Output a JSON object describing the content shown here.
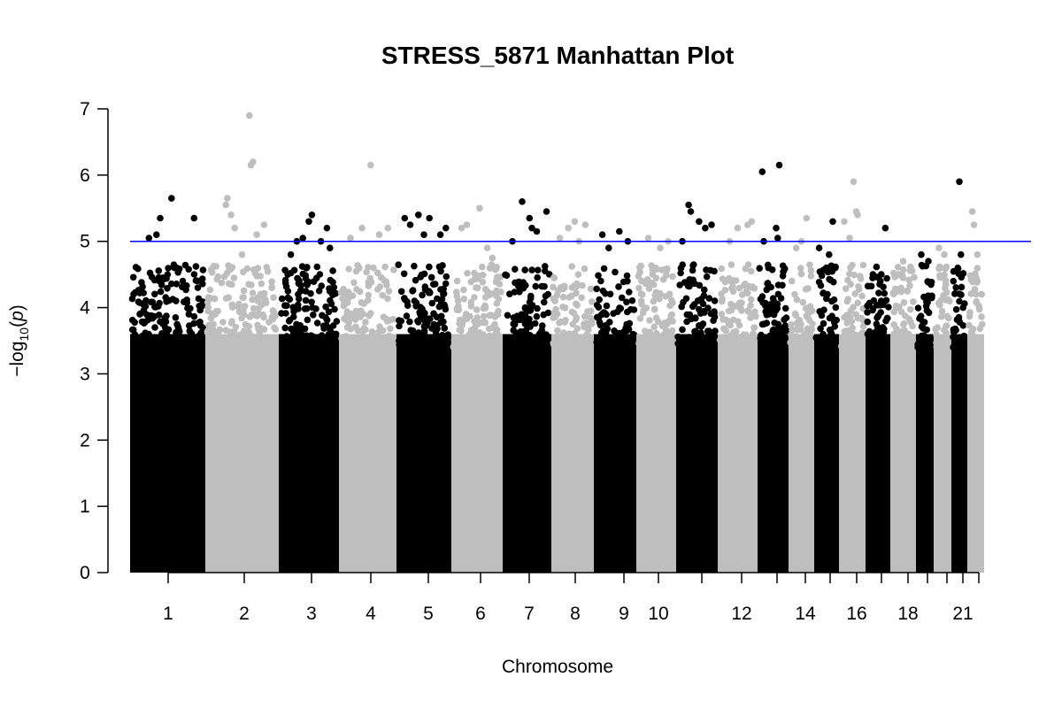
{
  "chart_data": {
    "type": "scatter",
    "title": "STRESS_5871 Manhattan Plot",
    "xlabel": "Chromosome",
    "ylabel": "−log10(p)",
    "ylim": [
      0,
      7
    ],
    "yticks": [
      "0",
      "1",
      "2",
      "3",
      "4",
      "5",
      "6",
      "7"
    ],
    "threshold": 5,
    "colors": {
      "odd": "#000000",
      "even": "#bebebe",
      "threshold": "#0000ff"
    },
    "chromosomes": [
      {
        "chr": "1",
        "label": "1",
        "top": [
          [
            0.35,
            5.1
          ],
          [
            0.25,
            5.05
          ],
          [
            0.4,
            5.35
          ],
          [
            0.55,
            5.65
          ],
          [
            0.85,
            5.35
          ],
          [
            0.62,
            4.6
          ],
          [
            0.7,
            4.4
          ],
          [
            0.9,
            4.3
          ]
        ]
      },
      {
        "chr": "2",
        "label": "2",
        "top": [
          [
            0.3,
            5.65
          ],
          [
            0.28,
            5.55
          ],
          [
            0.35,
            5.4
          ],
          [
            0.4,
            5.2
          ],
          [
            0.6,
            6.9
          ],
          [
            0.62,
            6.15
          ],
          [
            0.65,
            6.2
          ],
          [
            0.7,
            5.1
          ],
          [
            0.8,
            5.25
          ],
          [
            0.5,
            4.8
          ]
        ]
      },
      {
        "chr": "3",
        "label": "3",
        "top": [
          [
            0.2,
            4.8
          ],
          [
            0.3,
            5.0
          ],
          [
            0.4,
            5.05
          ],
          [
            0.5,
            5.3
          ],
          [
            0.55,
            5.4
          ],
          [
            0.7,
            5.0
          ],
          [
            0.8,
            5.2
          ],
          [
            0.85,
            4.9
          ]
        ]
      },
      {
        "chr": "4",
        "label": "4",
        "top": [
          [
            0.2,
            5.05
          ],
          [
            0.4,
            5.2
          ],
          [
            0.55,
            6.15
          ],
          [
            0.7,
            5.1
          ],
          [
            0.85,
            5.2
          ],
          [
            0.6,
            4.6
          ],
          [
            0.3,
            4.55
          ]
        ]
      },
      {
        "chr": "5",
        "label": "5",
        "top": [
          [
            0.15,
            5.35
          ],
          [
            0.25,
            5.25
          ],
          [
            0.4,
            5.4
          ],
          [
            0.5,
            5.1
          ],
          [
            0.6,
            5.35
          ],
          [
            0.8,
            5.1
          ],
          [
            0.9,
            5.2
          ]
        ]
      },
      {
        "chr": "6",
        "label": "6",
        "top": [
          [
            0.2,
            5.2
          ],
          [
            0.3,
            5.25
          ],
          [
            0.55,
            5.5
          ],
          [
            0.7,
            4.9
          ],
          [
            0.8,
            4.75
          ]
        ]
      },
      {
        "chr": "7",
        "label": "7",
        "top": [
          [
            0.2,
            5.0
          ],
          [
            0.4,
            5.6
          ],
          [
            0.55,
            5.35
          ],
          [
            0.6,
            5.2
          ],
          [
            0.7,
            5.15
          ],
          [
            0.9,
            5.45
          ]
        ]
      },
      {
        "chr": "8",
        "label": "8",
        "top": [
          [
            0.2,
            5.05
          ],
          [
            0.4,
            5.2
          ],
          [
            0.55,
            5.3
          ],
          [
            0.65,
            5.0
          ],
          [
            0.8,
            5.25
          ]
        ]
      },
      {
        "chr": "9",
        "label": "9",
        "top": [
          [
            0.2,
            5.1
          ],
          [
            0.35,
            4.9
          ],
          [
            0.6,
            5.15
          ],
          [
            0.8,
            5.0
          ]
        ]
      },
      {
        "chr": "10",
        "label": "10",
        "top": [
          [
            0.3,
            5.05
          ],
          [
            0.6,
            4.9
          ],
          [
            0.8,
            5.0
          ]
        ]
      },
      {
        "chr": "11",
        "label": "",
        "top": [
          [
            0.15,
            5.0
          ],
          [
            0.3,
            5.55
          ],
          [
            0.35,
            5.45
          ],
          [
            0.55,
            5.3
          ],
          [
            0.7,
            5.2
          ],
          [
            0.85,
            5.25
          ]
        ]
      },
      {
        "chr": "12",
        "label": "12",
        "top": [
          [
            0.3,
            5.0
          ],
          [
            0.5,
            5.2
          ],
          [
            0.75,
            5.25
          ],
          [
            0.85,
            5.3
          ]
        ]
      },
      {
        "chr": "13",
        "label": "",
        "top": [
          [
            0.15,
            6.05
          ],
          [
            0.2,
            5.0
          ],
          [
            0.7,
            6.15
          ],
          [
            0.6,
            5.2
          ],
          [
            0.65,
            5.05
          ],
          [
            0.35,
            4.6
          ]
        ]
      },
      {
        "chr": "14",
        "label": "14",
        "top": [
          [
            0.5,
            5.0
          ],
          [
            0.7,
            5.35
          ],
          [
            0.3,
            4.9
          ]
        ]
      },
      {
        "chr": "15",
        "label": "",
        "top": [
          [
            0.2,
            4.9
          ],
          [
            0.6,
            4.8
          ],
          [
            0.75,
            5.3
          ],
          [
            0.85,
            4.6
          ]
        ]
      },
      {
        "chr": "16",
        "label": "16",
        "top": [
          [
            0.2,
            5.3
          ],
          [
            0.4,
            5.05
          ],
          [
            0.55,
            5.9
          ],
          [
            0.7,
            5.4
          ],
          [
            0.65,
            5.45
          ]
        ]
      },
      {
        "chr": "17",
        "label": "",
        "top": [
          [
            0.3,
            4.5
          ],
          [
            0.8,
            5.2
          ],
          [
            0.6,
            4.4
          ]
        ]
      },
      {
        "chr": "18",
        "label": "18",
        "top": [
          [
            0.3,
            4.5
          ],
          [
            0.5,
            4.7
          ],
          [
            0.8,
            4.6
          ]
        ]
      },
      {
        "chr": "19",
        "label": "",
        "top": [
          [
            0.3,
            4.8
          ],
          [
            0.7,
            4.7
          ]
        ]
      },
      {
        "chr": "20",
        "label": "",
        "top": [
          [
            0.3,
            4.9
          ],
          [
            0.6,
            4.8
          ]
        ]
      },
      {
        "chr": "21",
        "label": "21",
        "top": [
          [
            0.5,
            5.9
          ],
          [
            0.6,
            4.8
          ],
          [
            0.4,
            4.6
          ]
        ]
      },
      {
        "chr": "22",
        "label": "",
        "top": [
          [
            0.3,
            5.45
          ],
          [
            0.4,
            5.25
          ],
          [
            0.6,
            4.8
          ]
        ]
      }
    ]
  }
}
